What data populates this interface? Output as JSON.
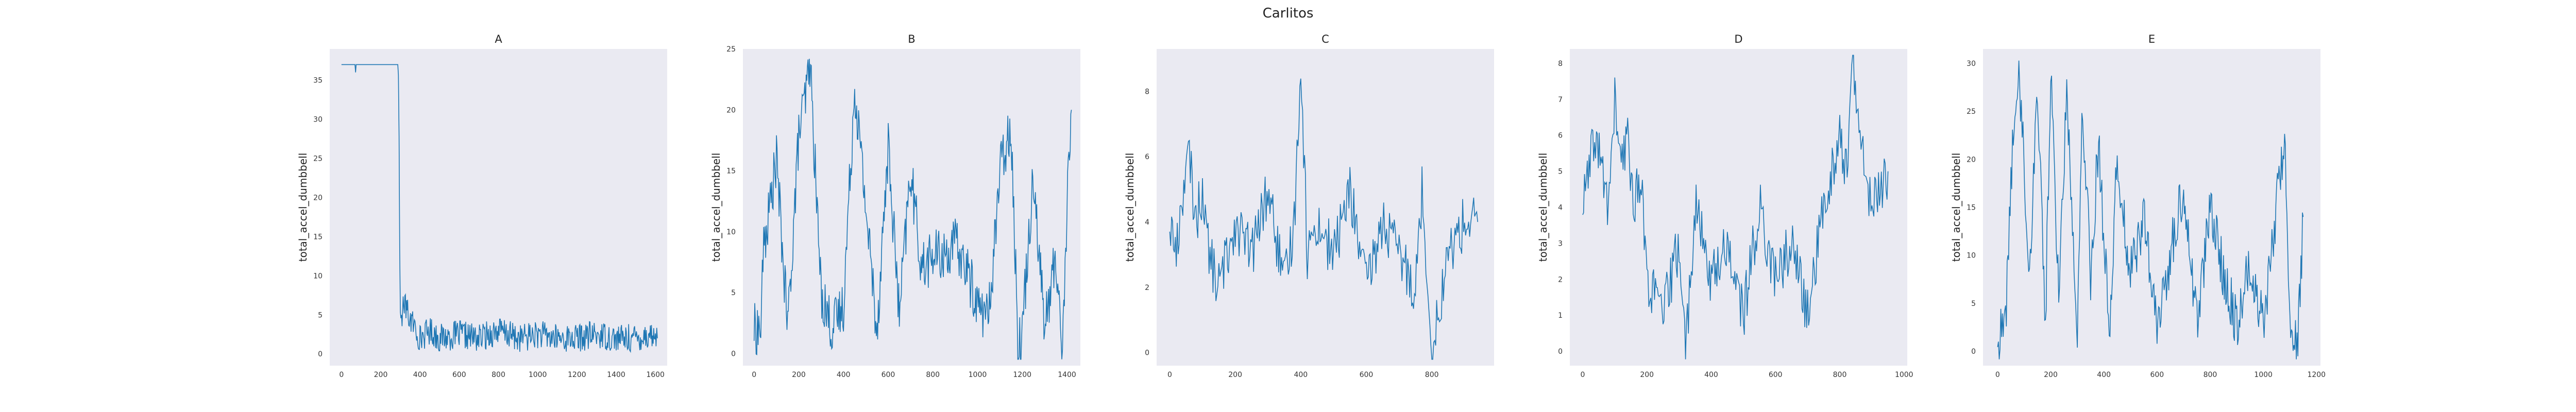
{
  "figure": {
    "title": "Carlitos"
  },
  "chart_data": [
    {
      "type": "line",
      "title": "A",
      "xlabel": "",
      "ylabel": "total_accel_dumbbell",
      "xlim": [
        -60,
        1660
      ],
      "ylim": [
        -1.5,
        39
      ],
      "xticks": [
        0,
        200,
        400,
        600,
        800,
        1000,
        1200,
        1400,
        1600
      ],
      "yticks": [
        0,
        5,
        10,
        15,
        20,
        25,
        30,
        35
      ],
      "color": "#1f77b4",
      "grid": false,
      "series": [
        {
          "x": [
            0,
            290,
            300,
            320,
            340,
            360,
            380,
            400,
            450,
            500,
            600,
            700,
            800,
            900,
            1000,
            1100,
            1200,
            1300,
            1400,
            1500,
            1580,
            1600,
            1610
          ],
          "y": [
            37,
            37,
            4,
            6.5,
            5,
            4,
            3,
            2,
            3,
            2,
            2.5,
            2,
            3,
            2,
            2.5,
            2,
            2,
            2.5,
            2,
            2,
            2.5,
            2,
            2
          ]
        }
      ]
    },
    {
      "type": "line",
      "title": "B",
      "xlabel": "",
      "ylabel": "total_accel_dumbbell",
      "xlim": [
        -50,
        1460
      ],
      "ylim": [
        -1,
        25
      ],
      "xticks": [
        0,
        200,
        400,
        600,
        800,
        1000,
        1200,
        1400
      ],
      "yticks": [
        0,
        5,
        10,
        15,
        20,
        25
      ],
      "color": "#1f77b4",
      "grid": false,
      "series": [
        {
          "x": [
            0,
            30,
            40,
            100,
            150,
            200,
            230,
            250,
            300,
            350,
            400,
            450,
            500,
            550,
            600,
            650,
            700,
            750,
            800,
            850,
            900,
            950,
            1000,
            1050,
            1100,
            1150,
            1180,
            1200,
            1250,
            1300,
            1350,
            1380,
            1400,
            1420
          ],
          "y": [
            2,
            2,
            8,
            16,
            2,
            18,
            21,
            24,
            5,
            2,
            4,
            22,
            12,
            2,
            17,
            3,
            15,
            7,
            8,
            8,
            9,
            7,
            4,
            3,
            15,
            19,
            1,
            2,
            15,
            2,
            8,
            0,
            12,
            20
          ]
        }
      ]
    },
    {
      "type": "line",
      "title": "C",
      "xlabel": "",
      "ylabel": "total_accel_dumbbell",
      "xlim": [
        -40,
        990
      ],
      "ylim": [
        -0.4,
        9.3
      ],
      "xticks": [
        0,
        200,
        400,
        600,
        800
      ],
      "yticks": [
        0,
        2,
        4,
        6,
        8
      ],
      "color": "#1f77b4",
      "grid": false,
      "series": [
        {
          "x": [
            0,
            20,
            40,
            60,
            80,
            100,
            120,
            150,
            200,
            250,
            300,
            350,
            380,
            400,
            420,
            450,
            500,
            550,
            600,
            650,
            700,
            750,
            770,
            800,
            850,
            900,
            940
          ],
          "y": [
            4,
            3,
            5,
            6,
            4,
            5,
            3,
            2,
            4,
            3,
            5,
            2,
            4,
            9,
            3,
            4,
            3,
            5,
            2,
            4,
            3,
            2,
            5,
            0,
            3,
            4,
            4
          ]
        }
      ]
    },
    {
      "type": "line",
      "title": "D",
      "xlabel": "",
      "ylabel": "total_accel_dumbbell",
      "xlim": [
        -40,
        1010
      ],
      "ylim": [
        -0.4,
        8.4
      ],
      "xticks": [
        0,
        200,
        400,
        600,
        800,
        1000
      ],
      "yticks": [
        0,
        1,
        2,
        3,
        4,
        5,
        6,
        7,
        8
      ],
      "color": "#1f77b4",
      "grid": false,
      "series": [
        {
          "x": [
            0,
            20,
            40,
            60,
            80,
            100,
            120,
            140,
            160,
            180,
            200,
            250,
            300,
            320,
            350,
            400,
            450,
            500,
            550,
            600,
            650,
            700,
            750,
            800,
            820,
            840,
            860,
            900,
            950
          ],
          "y": [
            4,
            5,
            6,
            5,
            4,
            7,
            5,
            6,
            4,
            5,
            2,
            1,
            3,
            0,
            4,
            2,
            3,
            1,
            4,
            2,
            3,
            1,
            4,
            6,
            5,
            8,
            6,
            4,
            5
          ]
        }
      ]
    },
    {
      "type": "line",
      "title": "E",
      "xlabel": "",
      "ylabel": "total_accel_dumbbell",
      "xlim": [
        -55,
        1215
      ],
      "ylim": [
        -1.5,
        31.5
      ],
      "xticks": [
        0,
        200,
        400,
        600,
        800,
        1000,
        1200
      ],
      "yticks": [
        0,
        5,
        10,
        15,
        20,
        25,
        30
      ],
      "color": "#1f77b4",
      "grid": false,
      "series": [
        {
          "x": [
            0,
            30,
            50,
            80,
            120,
            150,
            180,
            200,
            230,
            260,
            300,
            320,
            350,
            380,
            420,
            450,
            500,
            550,
            600,
            650,
            700,
            750,
            800,
            850,
            900,
            950,
            1000,
            1050,
            1080,
            1100,
            1130,
            1150
          ],
          "y": [
            1,
            3,
            18,
            30,
            8,
            28,
            3,
            29,
            6,
            27,
            3,
            26,
            8,
            22,
            2,
            20,
            8,
            14,
            2,
            10,
            17,
            3,
            15,
            8,
            3,
            9,
            3,
            15,
            23,
            3,
            1,
            14
          ]
        }
      ]
    }
  ]
}
